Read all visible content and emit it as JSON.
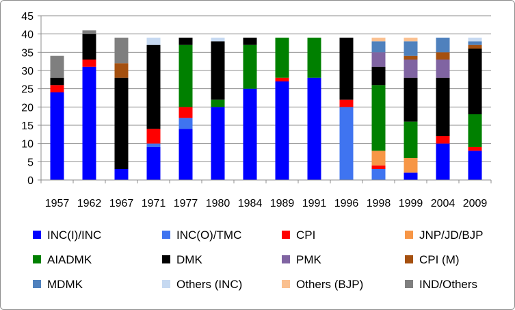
{
  "chart_data": {
    "type": "bar",
    "stacked": true,
    "grid": true,
    "legend_position": "bottom",
    "title": "",
    "xlabel": "",
    "ylabel": "",
    "ylim": [
      0,
      45
    ],
    "yticks": [
      "0",
      "5",
      "10",
      "15",
      "20",
      "25",
      "30",
      "35",
      "40",
      "45"
    ],
    "categories": [
      "1957",
      "1962",
      "1967",
      "1971",
      "1977",
      "1980",
      "1984",
      "1989",
      "1991",
      "1996",
      "1998",
      "1999",
      "2004",
      "2009"
    ],
    "series": [
      {
        "name": "INC(I)/INC",
        "color": "#0000ff",
        "values": [
          24,
          31,
          3,
          9,
          14,
          20,
          25,
          27,
          28,
          0,
          0,
          2,
          10,
          8
        ]
      },
      {
        "name": "INC(O)/TMC",
        "color": "#3f74f0",
        "values": [
          0,
          0,
          0,
          1,
          3,
          0,
          0,
          0,
          0,
          20,
          3,
          0,
          0,
          0
        ]
      },
      {
        "name": "CPI",
        "color": "#ff0000",
        "values": [
          2,
          2,
          0,
          4,
          3,
          0,
          0,
          1,
          0,
          2,
          1,
          0,
          2,
          1
        ]
      },
      {
        "name": "JNP/JD/BJP",
        "color": "#f79646",
        "values": [
          0,
          0,
          0,
          0,
          0,
          0,
          0,
          0,
          0,
          0,
          4,
          4,
          0,
          0
        ]
      },
      {
        "name": "AIADMK",
        "color": "#008000",
        "values": [
          0,
          0,
          0,
          0,
          17,
          2,
          12,
          11,
          11,
          0,
          18,
          10,
          0,
          9
        ]
      },
      {
        "name": "DMK",
        "color": "#000000",
        "values": [
          2,
          7,
          25,
          23,
          2,
          16,
          2,
          0,
          0,
          17,
          5,
          12,
          16,
          18
        ]
      },
      {
        "name": "PMK",
        "color": "#8064a2",
        "values": [
          0,
          0,
          0,
          0,
          0,
          0,
          0,
          0,
          0,
          0,
          4,
          5,
          5,
          0
        ]
      },
      {
        "name": "CPI (M)",
        "color": "#a5500f",
        "values": [
          0,
          0,
          4,
          0,
          0,
          0,
          0,
          0,
          0,
          0,
          0,
          1,
          2,
          1
        ]
      },
      {
        "name": "MDMK",
        "color": "#4f81bd",
        "values": [
          0,
          0,
          0,
          0,
          0,
          0,
          0,
          0,
          0,
          0,
          3,
          4,
          4,
          1
        ]
      },
      {
        "name": "Others (INC)",
        "color": "#c6d9f1",
        "values": [
          0,
          0,
          0,
          2,
          0,
          1,
          0,
          0,
          0,
          0,
          0,
          0,
          0,
          1
        ]
      },
      {
        "name": "Others (BJP)",
        "color": "#fac090",
        "values": [
          0,
          0,
          0,
          0,
          0,
          0,
          0,
          0,
          0,
          0,
          1,
          1,
          0,
          0
        ]
      },
      {
        "name": "IND/Others",
        "color": "#7f7f7f",
        "values": [
          6,
          1,
          7,
          0,
          0,
          0,
          0,
          0,
          0,
          0,
          0,
          0,
          0,
          0
        ]
      }
    ]
  }
}
